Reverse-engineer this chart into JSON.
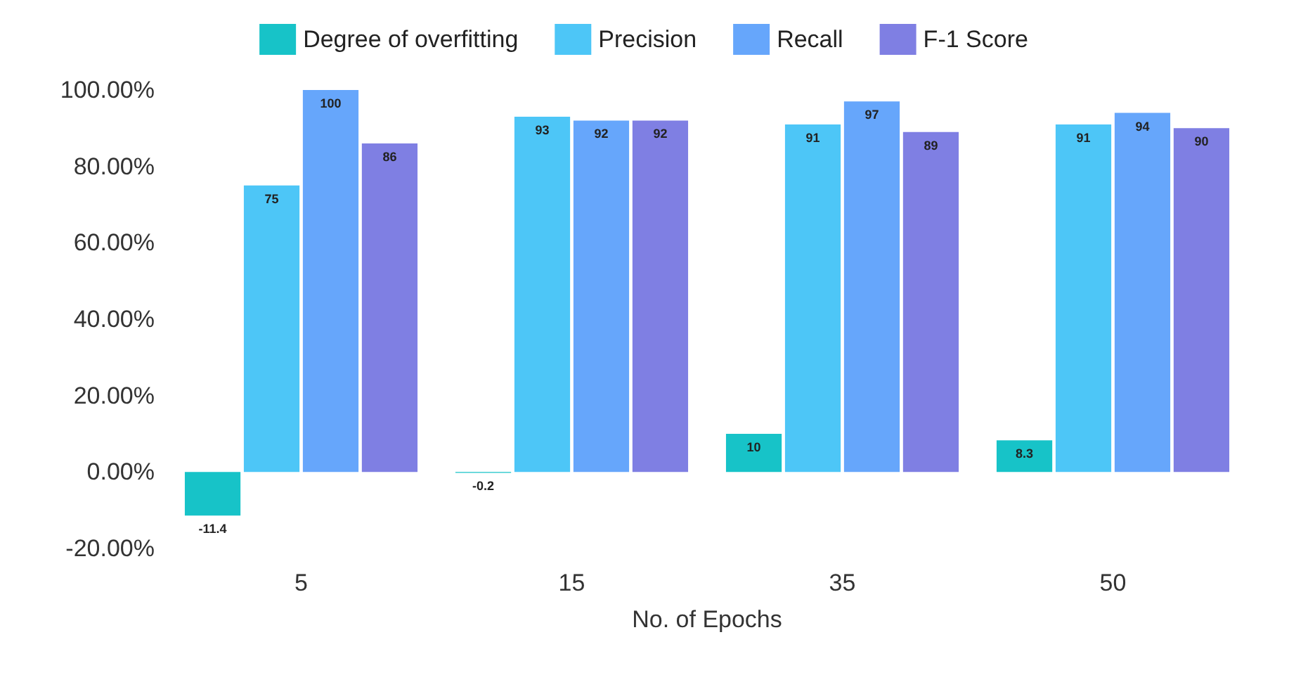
{
  "chart_data": {
    "type": "bar",
    "xlabel": "No. of Epochs",
    "categories": [
      "5",
      "15",
      "35",
      "50"
    ],
    "series": [
      {
        "name": "Degree of overfitting",
        "color": "#17c3c8",
        "values": [
          -11.4,
          -0.2,
          10,
          8.3
        ]
      },
      {
        "name": "Precision",
        "color": "#4dc6f7",
        "values": [
          75,
          93,
          91,
          91
        ]
      },
      {
        "name": "Recall",
        "color": "#66a6fb",
        "values": [
          100,
          92,
          97,
          94
        ]
      },
      {
        "name": "F-1 Score",
        "color": "#7f7fe3",
        "values": [
          86,
          92,
          89,
          90
        ]
      }
    ],
    "ylim": [
      -20,
      100
    ],
    "yticks": [
      {
        "value": -20,
        "label": "-20.00%"
      },
      {
        "value": 0,
        "label": "0.00%"
      },
      {
        "value": 20,
        "label": "20.00%"
      },
      {
        "value": 40,
        "label": "40.00%"
      },
      {
        "value": 60,
        "label": "60.00%"
      },
      {
        "value": 80,
        "label": "80.00%"
      },
      {
        "value": 100,
        "label": "100.00%"
      }
    ],
    "grid": false,
    "legend": "top",
    "data_labels": true
  }
}
